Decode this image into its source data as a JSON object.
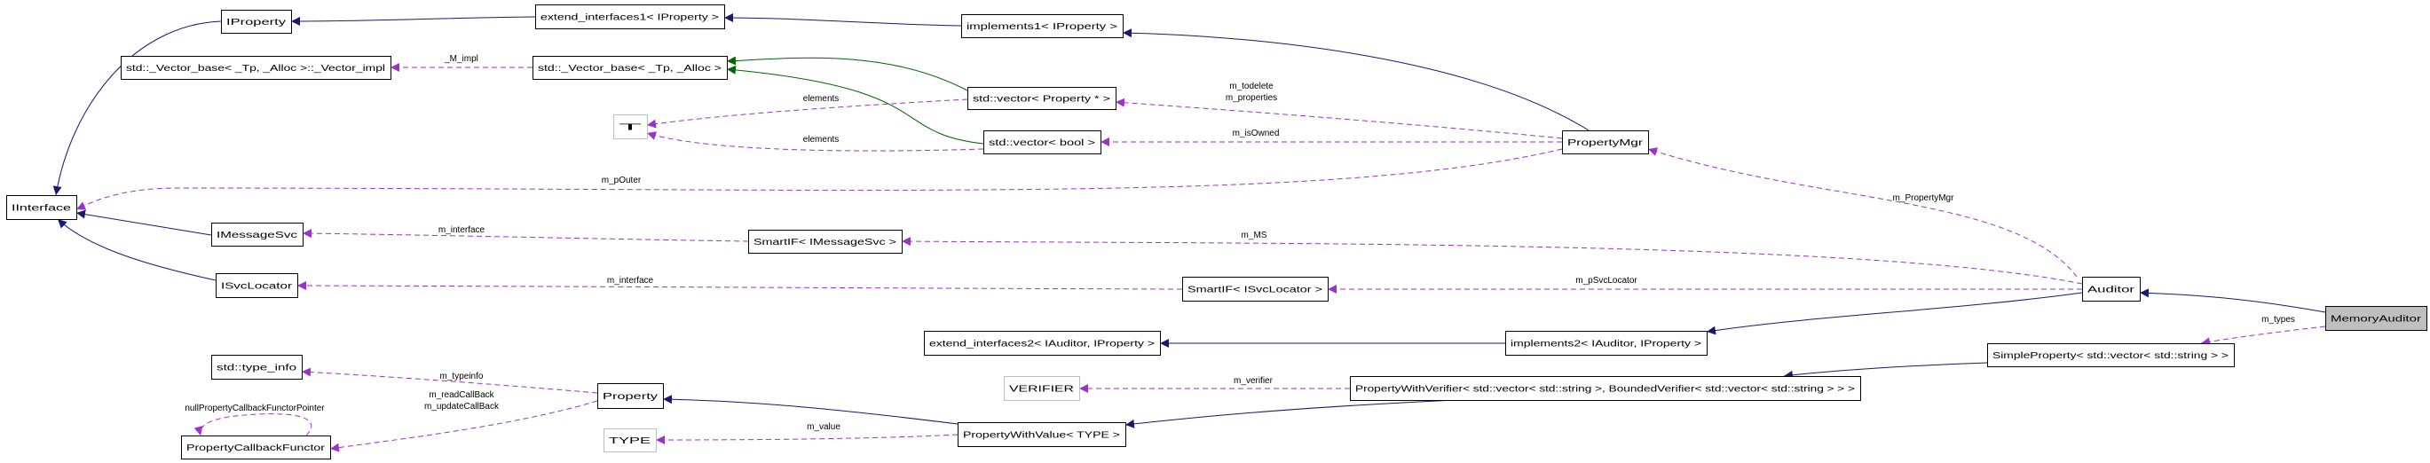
{
  "colors": {
    "inherit": "#191970",
    "template": "#006400",
    "usage": "#9a32cd",
    "focus_fill": "#bfbfbf",
    "undocumented_border": "#bfbfbf"
  },
  "nodes": [
    {
      "id": "IProperty",
      "label": "IProperty",
      "style": "normal"
    },
    {
      "id": "extend_interfaces1",
      "label": "extend_interfaces1< IProperty >",
      "style": "normal"
    },
    {
      "id": "implements1",
      "label": "implements1< IProperty >",
      "style": "normal"
    },
    {
      "id": "vector_impl",
      "label": "std::_Vector_base< _Tp, _Alloc >::_Vector_impl",
      "style": "normal"
    },
    {
      "id": "vector_base",
      "label": "std::_Vector_base< _Tp, _Alloc >",
      "style": "normal"
    },
    {
      "id": "T",
      "label": "T",
      "style": "gray"
    },
    {
      "id": "vector_property",
      "label": "std::vector< Property * >",
      "style": "normal"
    },
    {
      "id": "vector_bool",
      "label": "std::vector< bool >",
      "style": "normal"
    },
    {
      "id": "PropertyMgr",
      "label": "PropertyMgr",
      "style": "normal"
    },
    {
      "id": "IInterface",
      "label": "IInterface",
      "style": "normal"
    },
    {
      "id": "IMessageSvc",
      "label": "IMessageSvc",
      "style": "normal"
    },
    {
      "id": "SmartIF_IMessageSvc",
      "label": "SmartIF< IMessageSvc >",
      "style": "normal"
    },
    {
      "id": "ISvcLocator",
      "label": "ISvcLocator",
      "style": "normal"
    },
    {
      "id": "SmartIF_ISvcLocator",
      "label": "SmartIF< ISvcLocator >",
      "style": "normal"
    },
    {
      "id": "Auditor",
      "label": "Auditor",
      "style": "normal"
    },
    {
      "id": "MemoryAuditor",
      "label": "MemoryAuditor",
      "style": "focus"
    },
    {
      "id": "extend_interfaces2",
      "label": "extend_interfaces2< IAuditor, IProperty >",
      "style": "normal"
    },
    {
      "id": "implements2",
      "label": "implements2< IAuditor, IProperty >",
      "style": "normal"
    },
    {
      "id": "SimpleProperty",
      "label": "SimpleProperty< std::vector< std::string > >",
      "style": "normal"
    },
    {
      "id": "VERIFIER",
      "label": "VERIFIER",
      "style": "gray"
    },
    {
      "id": "PropertyWithVerifier",
      "label": "PropertyWithVerifier< std::vector< std::string >, BoundedVerifier< std::vector< std::string > > >",
      "style": "normal"
    },
    {
      "id": "type_info",
      "label": "std::type_info",
      "style": "normal"
    },
    {
      "id": "Property",
      "label": "Property",
      "style": "normal"
    },
    {
      "id": "PropertyCallbackFunctor",
      "label": "PropertyCallbackFunctor",
      "style": "normal"
    },
    {
      "id": "TYPE",
      "label": "TYPE",
      "style": "gray"
    },
    {
      "id": "PropertyWithValue",
      "label": "PropertyWithValue< TYPE >",
      "style": "normal"
    }
  ],
  "edges": [
    {
      "from": "IProperty",
      "to": "IInterface",
      "kind": "inherit",
      "labels": []
    },
    {
      "from": "extend_interfaces1",
      "to": "IProperty",
      "kind": "inherit",
      "labels": []
    },
    {
      "from": "implements1",
      "to": "extend_interfaces1",
      "kind": "inherit",
      "labels": []
    },
    {
      "from": "PropertyMgr",
      "to": "implements1",
      "kind": "inherit",
      "labels": []
    },
    {
      "from": "vector_base",
      "to": "vector_impl",
      "kind": "usage",
      "labels": [
        "_M_impl"
      ]
    },
    {
      "from": "vector_property",
      "to": "vector_base",
      "kind": "template",
      "labels": []
    },
    {
      "from": "vector_bool",
      "to": "vector_base",
      "kind": "template",
      "labels": []
    },
    {
      "from": "vector_property",
      "to": "T",
      "kind": "usage",
      "labels": [
        "elements"
      ]
    },
    {
      "from": "vector_bool",
      "to": "T",
      "kind": "usage",
      "labels": [
        "elements"
      ]
    },
    {
      "from": "PropertyMgr",
      "to": "vector_property",
      "kind": "usage",
      "labels": [
        "m_todelete",
        "m_properties"
      ]
    },
    {
      "from": "PropertyMgr",
      "to": "vector_bool",
      "kind": "usage",
      "labels": [
        "m_isOwned"
      ]
    },
    {
      "from": "PropertyMgr",
      "to": "IInterface",
      "kind": "usage",
      "labels": [
        "m_pOuter"
      ]
    },
    {
      "from": "IMessageSvc",
      "to": "IInterface",
      "kind": "inherit",
      "labels": []
    },
    {
      "from": "ISvcLocator",
      "to": "IInterface",
      "kind": "inherit",
      "labels": []
    },
    {
      "from": "SmartIF_IMessageSvc",
      "to": "IMessageSvc",
      "kind": "usage",
      "labels": [
        "m_interface"
      ]
    },
    {
      "from": "SmartIF_ISvcLocator",
      "to": "ISvcLocator",
      "kind": "usage",
      "labels": [
        "m_interface"
      ]
    },
    {
      "from": "Auditor",
      "to": "SmartIF_IMessageSvc",
      "kind": "usage",
      "labels": [
        "m_MS"
      ]
    },
    {
      "from": "Auditor",
      "to": "SmartIF_ISvcLocator",
      "kind": "usage",
      "labels": [
        "m_pSvcLocator"
      ]
    },
    {
      "from": "Auditor",
      "to": "PropertyMgr",
      "kind": "usage",
      "labels": [
        "m_PropertyMgr"
      ]
    },
    {
      "from": "Auditor",
      "to": "implements2",
      "kind": "inherit",
      "labels": []
    },
    {
      "from": "implements2",
      "to": "extend_interfaces2",
      "kind": "inherit",
      "labels": []
    },
    {
      "from": "MemoryAuditor",
      "to": "Auditor",
      "kind": "inherit",
      "labels": []
    },
    {
      "from": "MemoryAuditor",
      "to": "SimpleProperty",
      "kind": "usage",
      "labels": [
        "m_types"
      ]
    },
    {
      "from": "SimpleProperty",
      "to": "PropertyWithVerifier",
      "kind": "inherit",
      "labels": []
    },
    {
      "from": "PropertyWithVerifier",
      "to": "VERIFIER",
      "kind": "usage",
      "labels": [
        "m_verifier"
      ]
    },
    {
      "from": "PropertyWithVerifier",
      "to": "PropertyWithValue",
      "kind": "inherit",
      "labels": []
    },
    {
      "from": "PropertyWithValue",
      "to": "Property",
      "kind": "inherit",
      "labels": []
    },
    {
      "from": "PropertyWithValue",
      "to": "TYPE",
      "kind": "usage",
      "labels": [
        "m_value"
      ]
    },
    {
      "from": "Property",
      "to": "type_info",
      "kind": "usage",
      "labels": [
        "m_typeinfo"
      ]
    },
    {
      "from": "Property",
      "to": "PropertyCallbackFunctor",
      "kind": "usage",
      "labels": [
        "m_readCallBack",
        "m_updateCallBack"
      ]
    },
    {
      "from": "PropertyCallbackFunctor",
      "to": "PropertyCallbackFunctor",
      "kind": "usage",
      "labels": [
        "nullPropertyCallbackFunctorPointer"
      ]
    }
  ]
}
